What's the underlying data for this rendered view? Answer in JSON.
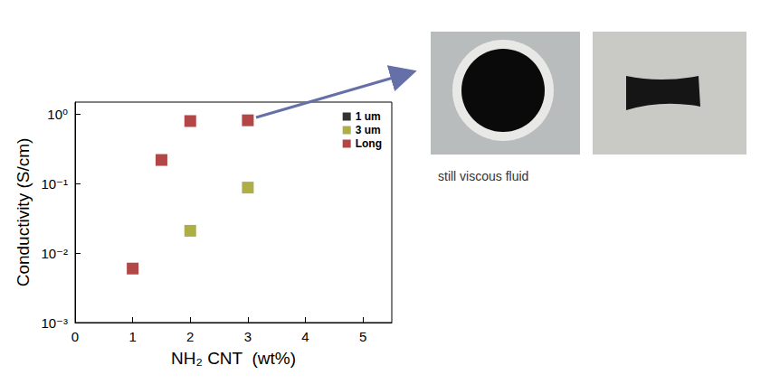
{
  "chart_data": {
    "type": "scatter",
    "x_label": "NH₂ CNT  (wt%)",
    "y_label": "Conductivity (S/cm)",
    "annotation": "still viscous fluid",
    "series": [
      {
        "name": "1 um",
        "color": "#000000",
        "x": [],
        "values": []
      },
      {
        "name": "3 um",
        "color": "#9a9a1a",
        "x": [
          2,
          3
        ],
        "values": [
          0.021,
          0.088
        ]
      },
      {
        "name": "Long",
        "color": "#a01818",
        "x": [
          1,
          1.5,
          2,
          3
        ],
        "values": [
          0.006,
          0.22,
          0.8,
          0.82
        ]
      }
    ],
    "xlim": [
      0,
      5.5
    ],
    "xticks": [
      0,
      1,
      2,
      3,
      4,
      5
    ],
    "ylim": [
      0.001,
      1.5
    ],
    "yticks": [
      {
        "value": 0.001,
        "label": "10⁻³"
      },
      {
        "value": 0.01,
        "label": "10⁻²"
      },
      {
        "value": 0.1,
        "label": "10⁻¹"
      },
      {
        "value": 1,
        "label": "10⁰"
      }
    ],
    "log": "y",
    "marker": "square",
    "legend": "upper right",
    "grid": false
  }
}
